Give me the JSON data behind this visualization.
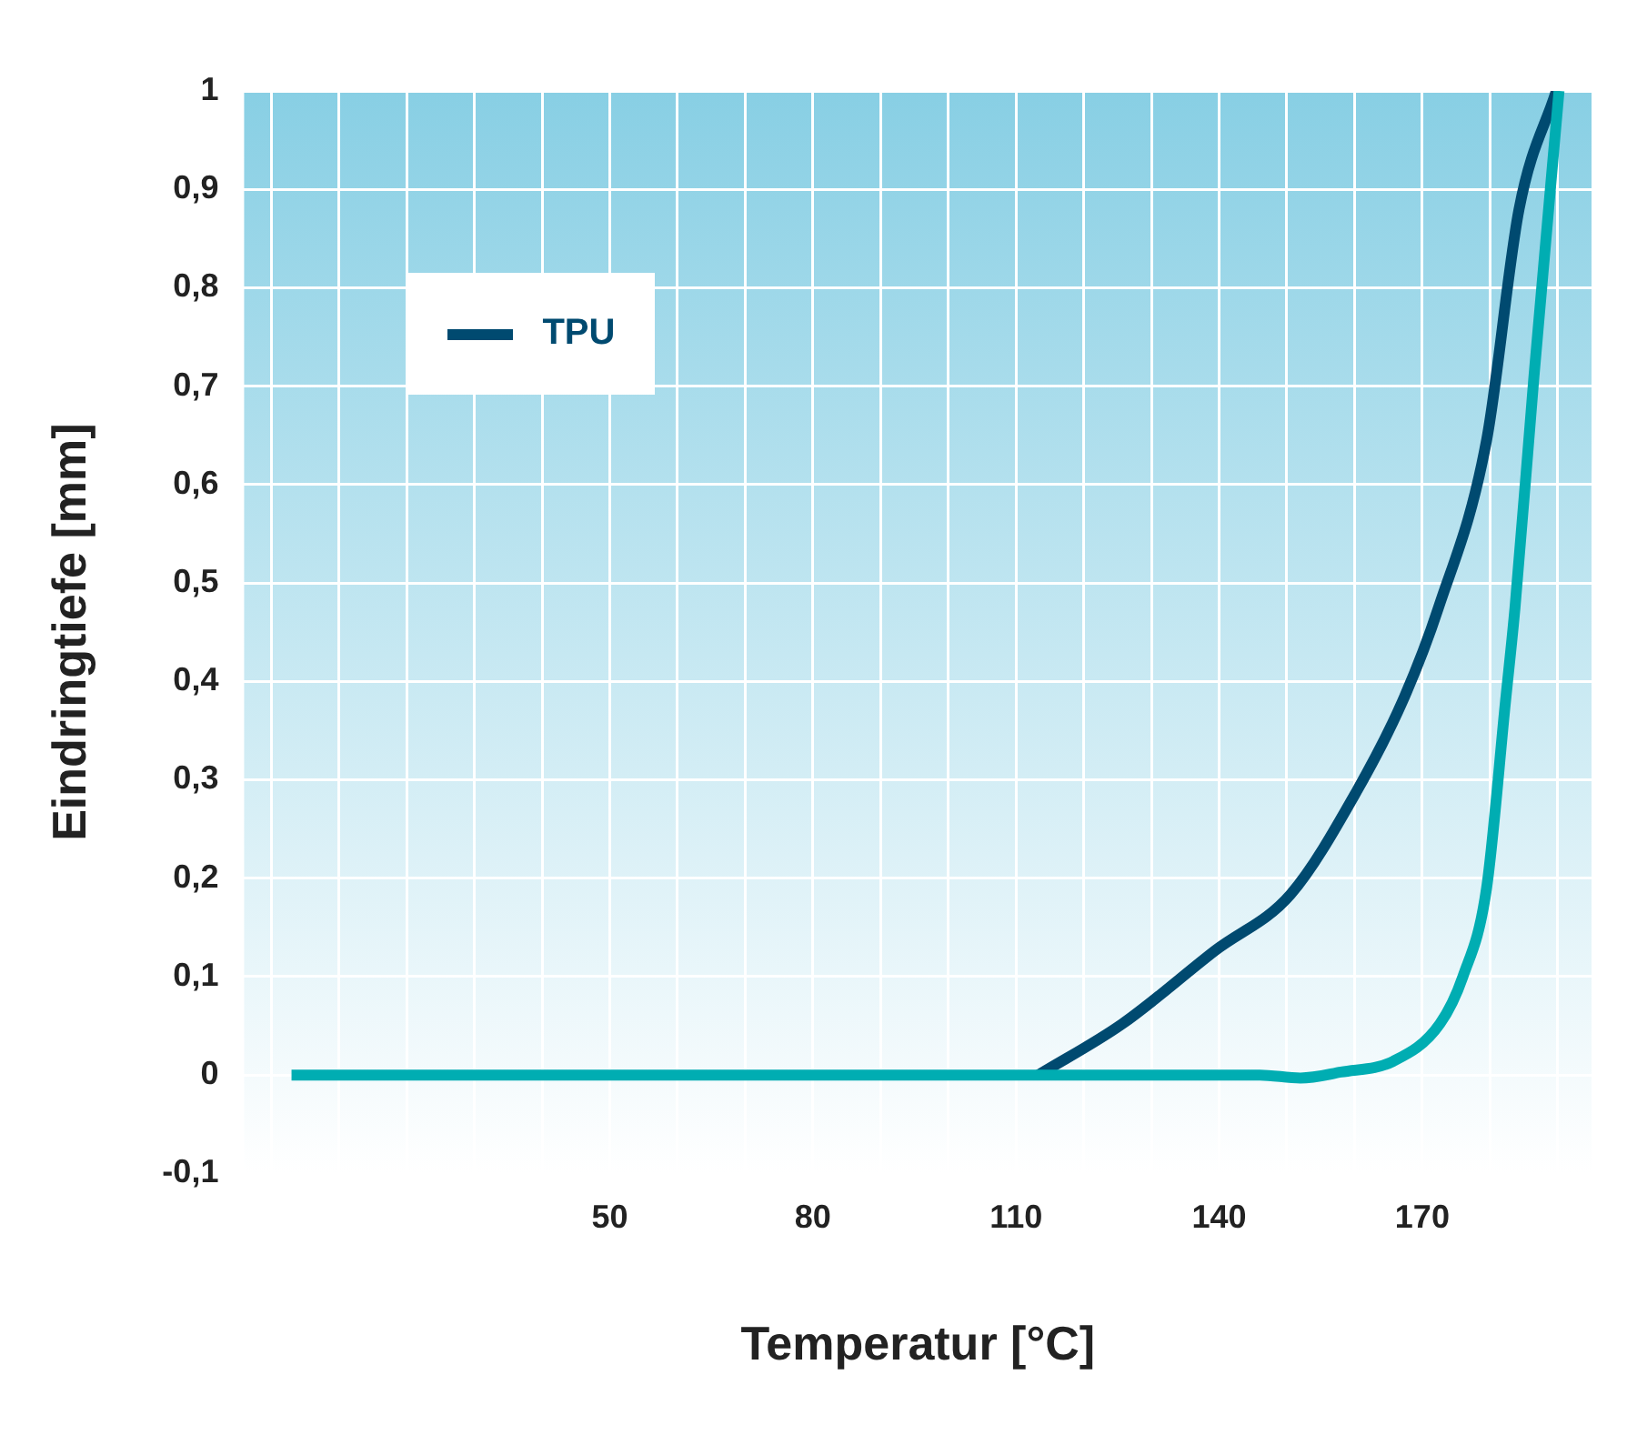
{
  "chart_data": {
    "type": "line",
    "xlabel": "Temperatur [°C]",
    "ylabel": "Eindringtiefe [mm]",
    "xlim": [
      -4,
      195
    ],
    "ylim": [
      -0.1,
      1
    ],
    "xticks": [
      {
        "value": 0,
        "label": null
      },
      {
        "value": 10,
        "label": null
      },
      {
        "value": 20,
        "label": null
      },
      {
        "value": 30,
        "label": null
      },
      {
        "value": 40,
        "label": null
      },
      50,
      {
        "value": 60,
        "label": null
      },
      {
        "value": 70,
        "label": null
      },
      80,
      {
        "value": 90,
        "label": null
      },
      {
        "value": 100,
        "label": null
      },
      110,
      {
        "value": 120,
        "label": null
      },
      {
        "value": 130,
        "label": null
      },
      140,
      {
        "value": 150,
        "label": null
      },
      {
        "value": 160,
        "label": null
      },
      170,
      {
        "value": 180,
        "label": null
      },
      {
        "value": 190,
        "label": null
      }
    ],
    "yticks": [
      {
        "value": -0.1,
        "label": "-0,1"
      },
      0,
      {
        "value": 0.1,
        "label": "0,1"
      },
      {
        "value": 0.2,
        "label": "0,2"
      },
      {
        "value": 0.3,
        "label": "0,3"
      },
      {
        "value": 0.4,
        "label": "0,4"
      },
      {
        "value": 0.5,
        "label": "0,5"
      },
      {
        "value": 0.6,
        "label": "0,6"
      },
      {
        "value": 0.7,
        "label": "0,7"
      },
      {
        "value": 0.8,
        "label": "0,8"
      },
      {
        "value": 0.9,
        "label": "0,9"
      },
      1
    ],
    "grid": true,
    "legend": "top left",
    "marker": "none",
    "line_style": "solid",
    "series": [
      {
        "color": "#00adb2",
        "x": [
          3,
          146,
          152,
          158,
          165.7,
          172.6,
          176,
          179.5,
          182.3,
          183.7,
          186.5,
          190.2
        ],
        "values": [
          0,
          0,
          -0.003,
          0.003,
          0.014,
          0.052,
          0.1,
          0.19,
          0.38,
          0.475,
          0.71,
          1
        ]
      },
      {
        "name": "TPU",
        "color": "#004a70",
        "x": [
          113.3,
          125.7,
          139.5,
          150.6,
          160.2,
          167.1,
          172.4,
          179.5,
          184.3,
          189.8
        ],
        "values": [
          0,
          0.052,
          0.127,
          0.184,
          0.287,
          0.38,
          0.475,
          0.645,
          0.88,
          1
        ]
      }
    ]
  }
}
